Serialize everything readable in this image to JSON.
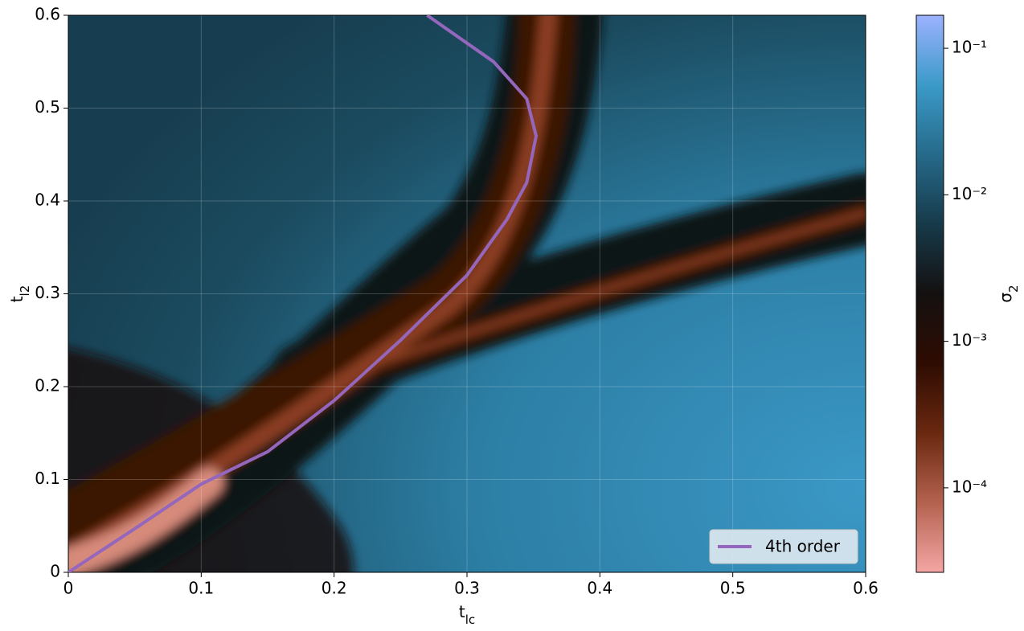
{
  "chart_data": {
    "type": "line",
    "xlabel": "t_lc",
    "ylabel": "t_l2",
    "xlim": [
      0,
      0.6
    ],
    "ylim": [
      0,
      0.6
    ],
    "xticks": [
      0.0,
      0.1,
      0.2,
      0.3,
      0.4,
      0.5,
      0.6
    ],
    "yticks": [
      0.0,
      0.1,
      0.2,
      0.3,
      0.4,
      0.5,
      0.6
    ],
    "grid": true,
    "legend": "lower right",
    "series": [
      {
        "name": "4th order",
        "color": "#9467bd",
        "x": [
          0,
          0.05,
          0.1,
          0.15,
          0.2,
          0.25,
          0.3,
          0.33,
          0.345,
          0.352,
          0.345,
          0.32,
          0.27
        ],
        "values": [
          0,
          0.047,
          0.095,
          0.13,
          0.185,
          0.25,
          0.32,
          0.38,
          0.42,
          0.47,
          0.51,
          0.55,
          0.6
        ]
      }
    ],
    "colorbar": {
      "label": "σ_2",
      "log": true,
      "lim": [
        2.65e-05,
        0.168
      ],
      "ticks": [
        {
          "value": 0.1,
          "label": "10⁻¹"
        },
        {
          "value": 0.01,
          "label": "10⁻²"
        },
        {
          "value": 0.001,
          "label": "10⁻³"
        },
        {
          "value": 0.0001,
          "label": "10⁻⁴"
        }
      ],
      "colors": [
        "#f4a6a4",
        "#b4624f",
        "#6a2810",
        "#2e0c02",
        "#141010",
        "#173a4a",
        "#266a8a",
        "#3b9ac8",
        "#9cb2ff"
      ]
    }
  }
}
